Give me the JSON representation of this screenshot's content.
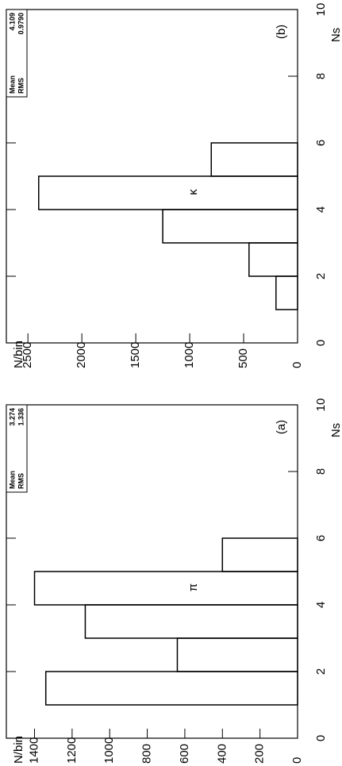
{
  "chart_data": [
    {
      "type": "histogram",
      "label": "(a)",
      "annotation": "π",
      "bins": [
        0,
        1,
        2,
        3,
        4,
        5,
        6,
        7,
        8,
        9,
        10
      ],
      "values": [
        0,
        1340,
        640,
        1130,
        1400,
        400,
        0,
        0,
        0,
        0
      ],
      "xlabel": "Ns",
      "ylabel": "N/bin",
      "xlim": [
        0,
        10
      ],
      "ylim": [
        0,
        1550
      ],
      "xticks": [
        0,
        2,
        4,
        6,
        8,
        10
      ],
      "yticks": [
        0,
        200,
        400,
        600,
        800,
        1000,
        1200,
        1400
      ],
      "stats": [
        {
          "label": "Mean",
          "value": "3.274"
        },
        {
          "label": "RMS",
          "value": "1.336"
        }
      ],
      "color": "#000000"
    },
    {
      "type": "histogram",
      "label": "(b)",
      "annotation": "κ",
      "bins": [
        0,
        1,
        2,
        3,
        4,
        5,
        6,
        7,
        8,
        9,
        10
      ],
      "values": [
        0,
        200,
        450,
        1250,
        2400,
        800,
        0,
        0,
        0,
        0
      ],
      "xlabel": "Ns",
      "ylabel": "N/bin",
      "xlim": [
        0,
        10
      ],
      "ylim": [
        0,
        2700
      ],
      "xticks": [
        0,
        2,
        4,
        6,
        8,
        10
      ],
      "yticks": [
        0,
        500,
        1000,
        1500,
        2000,
        2500
      ],
      "stats": [
        {
          "label": "Mean",
          "value": "4.109"
        },
        {
          "label": "RMS",
          "value": "0.9790"
        }
      ],
      "color": "#000000"
    }
  ]
}
